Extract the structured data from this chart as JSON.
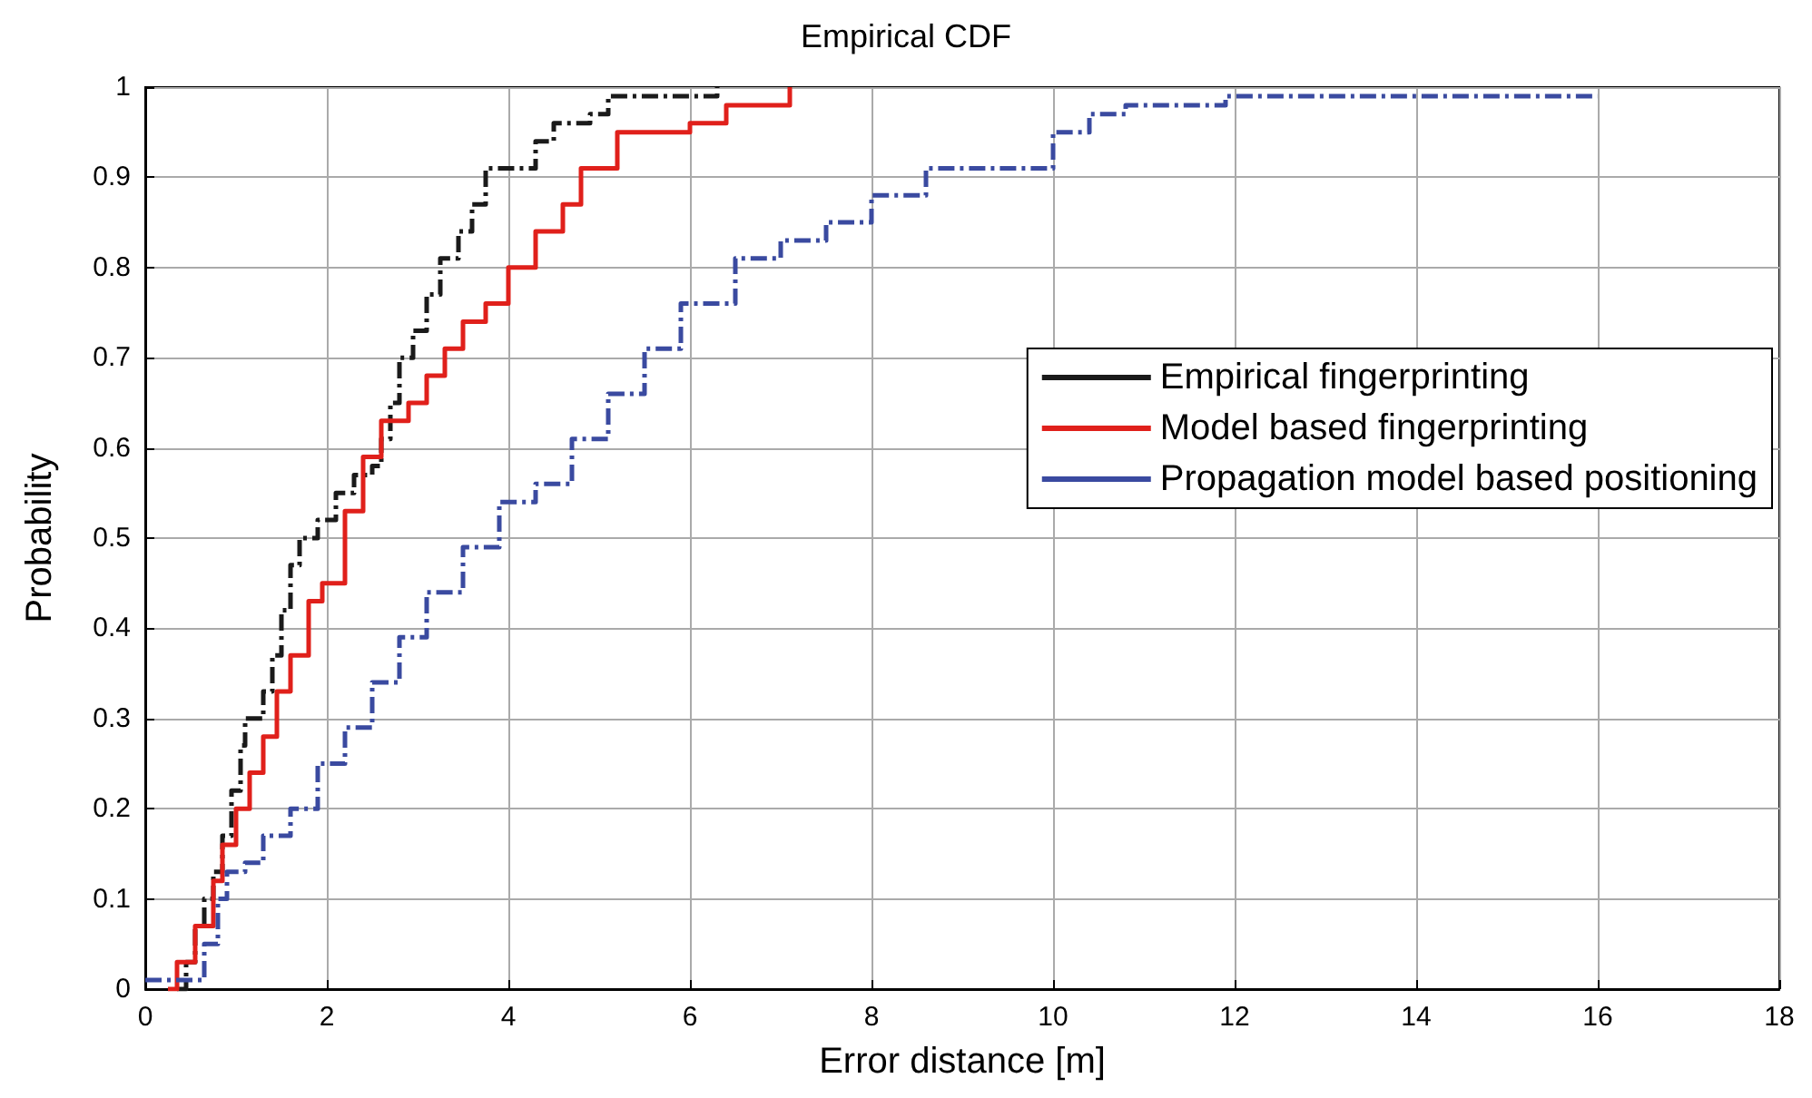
{
  "chart_data": {
    "type": "step",
    "title": "Empirical CDF",
    "xlabel": "Error distance [m]",
    "ylabel": "Probability",
    "xlim": [
      0,
      18
    ],
    "xticks": [
      0,
      2,
      4,
      6,
      8,
      10,
      12,
      14,
      16,
      18
    ],
    "ylim": [
      0,
      1
    ],
    "yticks": [
      0,
      0.1,
      0.2,
      0.3,
      0.4,
      0.5,
      0.6,
      0.7,
      0.8,
      0.9,
      1
    ],
    "grid": true,
    "legend": "right",
    "marker": "none",
    "series": [
      {
        "name": "Empirical fingerprinting",
        "color": "#1a1a1a",
        "line_style": "dashed",
        "x": [
          0.35,
          0.45,
          0.55,
          0.65,
          0.75,
          0.85,
          0.95,
          1.05,
          1.1,
          1.3,
          1.4,
          1.5,
          1.6,
          1.7,
          1.9,
          2.1,
          2.3,
          2.5,
          2.6,
          2.7,
          2.8,
          2.95,
          3.1,
          3.25,
          3.45,
          3.6,
          3.75,
          4.3,
          4.5,
          4.9,
          5.1,
          6.3
        ],
        "values": [
          0,
          0.03,
          0.07,
          0.1,
          0.13,
          0.17,
          0.22,
          0.27,
          0.3,
          0.33,
          0.37,
          0.42,
          0.47,
          0.5,
          0.52,
          0.55,
          0.57,
          0.58,
          0.61,
          0.65,
          0.7,
          0.73,
          0.77,
          0.81,
          0.84,
          0.87,
          0.91,
          0.94,
          0.96,
          0.97,
          0.99,
          1
        ]
      },
      {
        "name": "Model based fingerprinting",
        "color": "#e0201b",
        "line_style": "solid",
        "x": [
          0.25,
          0.35,
          0.55,
          0.75,
          0.85,
          1.0,
          1.15,
          1.3,
          1.45,
          1.6,
          1.8,
          1.95,
          2.2,
          2.4,
          2.6,
          2.9,
          3.1,
          3.3,
          3.5,
          3.75,
          4.0,
          4.3,
          4.6,
          4.8,
          5.2,
          6.0,
          6.4,
          7.1
        ],
        "values": [
          0,
          0.03,
          0.07,
          0.12,
          0.16,
          0.2,
          0.24,
          0.28,
          0.33,
          0.37,
          0.43,
          0.45,
          0.53,
          0.59,
          0.63,
          0.65,
          0.68,
          0.71,
          0.74,
          0.76,
          0.8,
          0.84,
          0.87,
          0.91,
          0.95,
          0.96,
          0.98,
          1
        ]
      },
      {
        "name": "Propagation model based positioning",
        "color": "#3a4aa0",
        "line_style": "dashed",
        "x": [
          0,
          0.55,
          0.65,
          0.8,
          0.9,
          1.1,
          1.3,
          1.6,
          1.9,
          2.2,
          2.5,
          2.8,
          3.1,
          3.5,
          3.9,
          4.3,
          4.7,
          5.1,
          5.5,
          5.9,
          6.5,
          7.0,
          7.5,
          8.0,
          8.6,
          10.0,
          10.4,
          10.8,
          11.9,
          16.0
        ],
        "values": [
          0.01,
          0.01,
          0.05,
          0.1,
          0.13,
          0.14,
          0.17,
          0.2,
          0.25,
          0.29,
          0.34,
          0.39,
          0.44,
          0.49,
          0.54,
          0.56,
          0.61,
          0.66,
          0.71,
          0.76,
          0.81,
          0.83,
          0.85,
          0.88,
          0.91,
          0.95,
          0.97,
          0.98,
          0.99,
          0.99
        ]
      }
    ]
  }
}
